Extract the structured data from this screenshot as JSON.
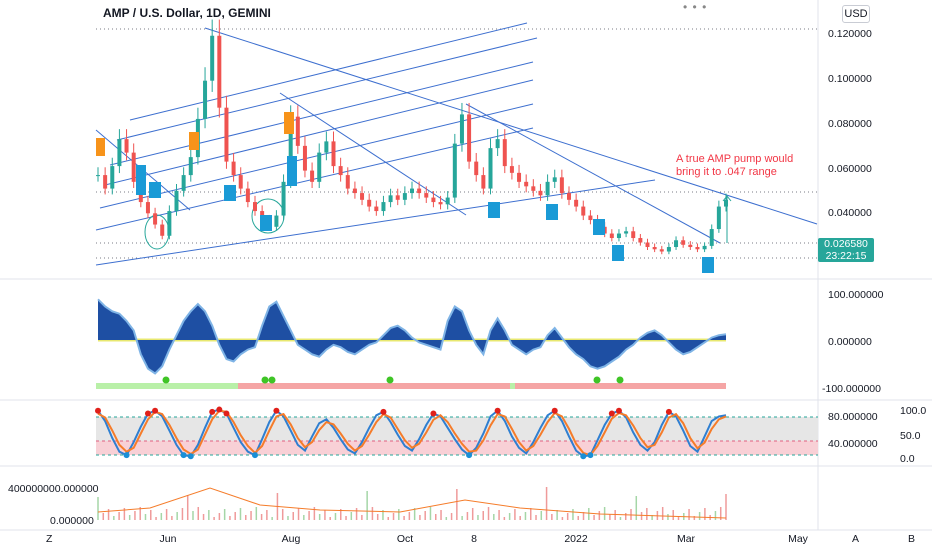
{
  "header": {
    "title": "AMP / U.S. Dollar, 1D, GEMINI",
    "currency": "USD",
    "menu_dots": "• • •"
  },
  "annotation": "A true AMP pump would bring it to .047 range",
  "price_tag": {
    "price": "0.026580",
    "countdown": "23:22:15"
  },
  "bottom_bar": {
    "left": "Z",
    "right_a": "A",
    "right_b": "B"
  },
  "colors": {
    "up": "#26a69a",
    "down": "#ef5350",
    "trend": "#3d6fcf",
    "accent_text": "#f23645",
    "osc_fill": "#1e4fa3",
    "osc_line": "#7fb4e6",
    "marker_orange": "#f7931a",
    "marker_blue": "#1a9ad6"
  },
  "chart_data": [
    {
      "type": "line",
      "title": "AMP / U.S. Dollar, 1D, GEMINI",
      "x_labels": [
        "Jun",
        "Aug",
        "Oct",
        "8",
        "2022",
        "Mar",
        "May"
      ],
      "y_ticks": [
        "0.120000",
        "0.100000",
        "0.080000",
        "0.060000",
        "0.040000"
      ],
      "ylim": [
        0.018,
        0.123
      ],
      "series": [
        {
          "values": [
            0.058,
            0.052,
            0.062,
            0.074,
            0.068,
            0.055,
            0.046,
            0.041,
            0.036,
            0.031,
            0.042,
            0.051,
            0.058,
            0.066,
            0.083,
            0.1,
            0.12,
            0.088,
            0.064,
            0.058,
            0.052,
            0.046,
            0.042,
            0.038,
            0.035,
            0.04,
            0.055,
            0.084,
            0.071,
            0.06,
            0.055,
            0.068,
            0.073,
            0.062,
            0.058,
            0.052,
            0.05,
            0.047,
            0.044,
            0.042,
            0.046,
            0.049,
            0.047,
            0.05,
            0.052,
            0.05,
            0.048,
            0.046,
            0.045,
            0.048,
            0.072,
            0.085,
            0.064,
            0.058,
            0.052,
            0.07,
            0.074,
            0.062,
            0.059,
            0.055,
            0.053,
            0.051,
            0.049,
            0.055,
            0.057,
            0.05,
            0.047,
            0.044,
            0.04,
            0.038,
            0.035,
            0.032,
            0.03,
            0.032,
            0.033,
            0.03,
            0.028,
            0.026,
            0.025,
            0.024,
            0.026,
            0.029,
            0.027,
            0.026,
            0.025,
            0.0265,
            0.034,
            0.044,
            0.047
          ]
        }
      ],
      "current_price": 0.02658,
      "target_price": 0.047
    },
    {
      "type": "area",
      "y_ticks": [
        "100.000000",
        "0.000000",
        "-100.000000"
      ],
      "ylim": [
        -115,
        115
      ],
      "series": [
        {
          "values": [
            85,
            70,
            60,
            55,
            40,
            20,
            -30,
            -60,
            -70,
            -55,
            -20,
            10,
            40,
            60,
            75,
            60,
            30,
            -10,
            -40,
            -45,
            -30,
            -20,
            -15,
            30,
            70,
            80,
            50,
            20,
            -10,
            -20,
            -30,
            -35,
            -20,
            -10,
            -15,
            -25,
            -30,
            -20,
            -10,
            -5,
            10,
            25,
            30,
            20,
            5,
            -5,
            -10,
            -15,
            -20,
            40,
            70,
            60,
            20,
            -10,
            -30,
            20,
            45,
            20,
            -10,
            -20,
            -30,
            -20,
            -15,
            10,
            25,
            5,
            -15,
            -30,
            -40,
            -55,
            -60,
            -55,
            -45,
            -35,
            -20,
            -10,
            5,
            15,
            20,
            10,
            -5,
            -20,
            -30,
            -25,
            -15,
            -5,
            5,
            10,
            12
          ]
        }
      ]
    },
    {
      "type": "line",
      "y_ticks": [
        "80.000000",
        "40.000000"
      ],
      "right_ticks": [
        "100.0",
        "50.0",
        "0.0"
      ],
      "ylim": [
        0,
        100
      ],
      "series": [
        {
          "values": [
            90,
            72,
            42,
            18,
            12,
            35,
            62,
            85,
            90,
            80,
            55,
            30,
            12,
            10,
            30,
            60,
            88,
            92,
            85,
            60,
            35,
            18,
            12,
            40,
            70,
            90,
            80,
            55,
            30,
            20,
            45,
            68,
            75,
            60,
            40,
            22,
            15,
            35,
            60,
            82,
            88,
            70,
            48,
            28,
            20,
            40,
            65,
            85,
            80,
            60,
            40,
            22,
            12,
            25,
            50,
            80,
            90,
            72,
            45,
            25,
            15,
            35,
            60,
            82,
            90,
            72,
            45,
            20,
            10,
            12,
            38,
            65,
            85,
            90,
            78,
            52,
            30,
            20,
            35,
            65,
            88,
            80,
            55,
            28,
            18,
            45,
            72,
            80,
            82
          ]
        },
        {
          "values": [
            85,
            78,
            55,
            30,
            18,
            25,
            50,
            75,
            88,
            84,
            65,
            42,
            22,
            14,
            22,
            48,
            75,
            90,
            88,
            70,
            47,
            28,
            16,
            28,
            55,
            80,
            84,
            66,
            42,
            26,
            35,
            56,
            70,
            66,
            50,
            32,
            20,
            28,
            48,
            70,
            84,
            78,
            58,
            38,
            25,
            32,
            52,
            74,
            82,
            70,
            50,
            32,
            18,
            20,
            38,
            64,
            84,
            80,
            58,
            35,
            20,
            28,
            48,
            70,
            86,
            80,
            58,
            32,
            16,
            12,
            28,
            52,
            76,
            86,
            82,
            64,
            42,
            26,
            30,
            52,
            78,
            84,
            68,
            42,
            24,
            34,
            58,
            75,
            80
          ]
        }
      ]
    },
    {
      "type": "line",
      "y_ticks": [
        "400000000.000000",
        "0.000000"
      ],
      "ylim": [
        0,
        500000000
      ],
      "series": []
    }
  ]
}
